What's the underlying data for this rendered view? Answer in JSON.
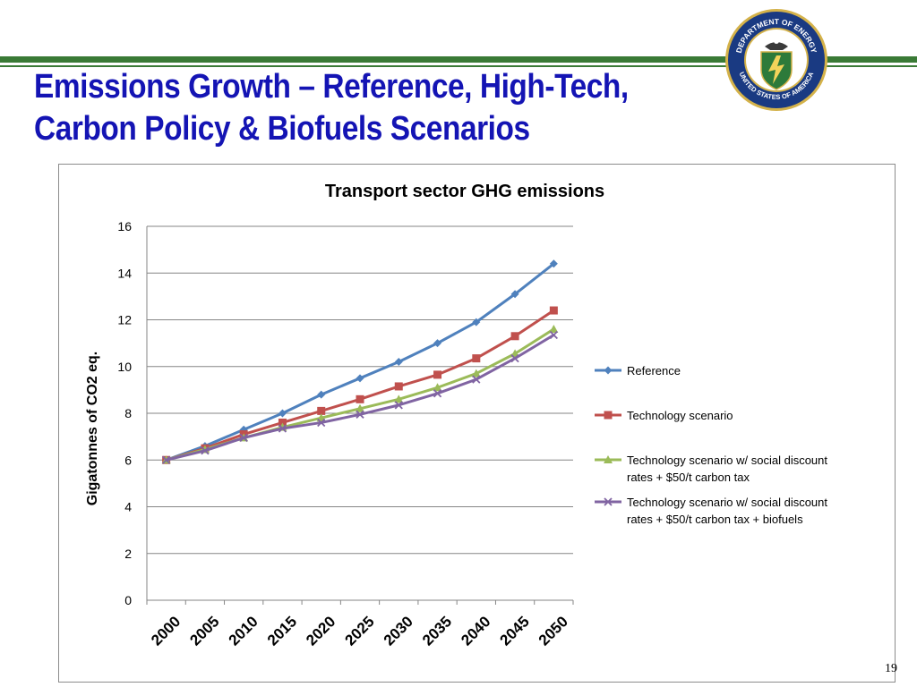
{
  "slide": {
    "title_line1": "Emissions Growth – Reference, High-Tech,",
    "title_line2": "Carbon Policy & Biofuels Scenarios",
    "page_number": "19",
    "seal": {
      "top_text": "DEPARTMENT OF ENERGY",
      "bottom_text": "UNITED STATES OF AMERICA"
    }
  },
  "colors": {
    "title": "#1414b4",
    "band": "#3a7a36"
  },
  "chart_data": {
    "type": "line",
    "title": "Transport sector GHG emissions",
    "xlabel": "",
    "ylabel": "Gigatonnes of CO2 eq.",
    "ylim": [
      0,
      16
    ],
    "yticks": [
      0,
      2,
      4,
      6,
      8,
      10,
      12,
      14,
      16
    ],
    "grid": true,
    "legend_position": "right",
    "x": [
      "2000",
      "2005",
      "2010",
      "2015",
      "2020",
      "2025",
      "2030",
      "2035",
      "2040",
      "2045",
      "2050"
    ],
    "series": [
      {
        "name": "Reference",
        "color": "#4f81bd",
        "marker": "diamond",
        "values": [
          6.0,
          6.6,
          7.3,
          8.0,
          8.8,
          9.5,
          10.2,
          11.0,
          11.9,
          13.1,
          14.4
        ]
      },
      {
        "name": "Technology scenario",
        "color": "#c0504d",
        "marker": "square",
        "values": [
          6.0,
          6.5,
          7.1,
          7.6,
          8.1,
          8.6,
          9.15,
          9.65,
          10.35,
          11.3,
          12.4
        ]
      },
      {
        "name": "Technology scenario w/ social discount rates + $50/t carbon tax",
        "color": "#9bbb59",
        "marker": "triangle",
        "values": [
          6.0,
          6.45,
          6.95,
          7.4,
          7.8,
          8.2,
          8.6,
          9.1,
          9.7,
          10.55,
          11.6
        ]
      },
      {
        "name": "Technology scenario w/ social discount rates + $50/t carbon tax + biofuels",
        "color": "#8064a2",
        "marker": "x",
        "values": [
          6.0,
          6.4,
          6.95,
          7.35,
          7.6,
          7.95,
          8.35,
          8.85,
          9.45,
          10.35,
          11.35
        ]
      }
    ]
  }
}
